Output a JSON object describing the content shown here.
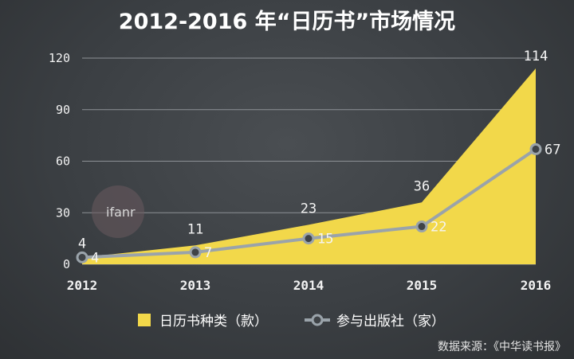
{
  "title": "2012-2016 年“日历书”市场情况",
  "watermark": "ifanr",
  "source": "数据来源：《中华读书报》",
  "colors": {
    "area": "#f2d84a",
    "line": "#9aa3aa",
    "grid": "#8d9196",
    "text": "#ffffff"
  },
  "chart_data": {
    "type": "area",
    "categories": [
      "2012",
      "2013",
      "2014",
      "2015",
      "2016"
    ],
    "ylim": [
      0,
      120
    ],
    "yticks": [
      "0",
      "30",
      "60",
      "90",
      "120"
    ],
    "grid": true,
    "legend_position": "bottom",
    "series": [
      {
        "name": "日历书种类（款）",
        "type": "area",
        "values": [
          4,
          11,
          23,
          36,
          114
        ],
        "labels": [
          "4",
          "11",
          "23",
          "36",
          "114"
        ]
      },
      {
        "name": "参与出版社（家）",
        "type": "line",
        "values": [
          4,
          7,
          15,
          22,
          67
        ],
        "labels": [
          "4",
          "7",
          "15",
          "22",
          "67"
        ]
      }
    ]
  }
}
